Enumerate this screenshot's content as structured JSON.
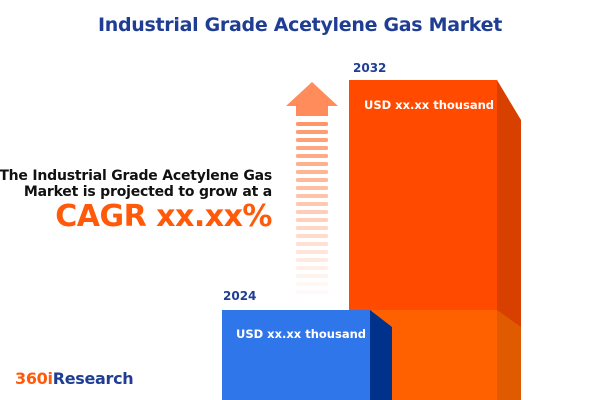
{
  "title": "Industrial Grade Acetylene Gas Market",
  "lead_text": "The Industrial Grade Acetylene Gas Market is projected to grow at a",
  "cagr_text": "CAGR xx.xx%",
  "logo": {
    "part1": "360i",
    "part2": "Research"
  },
  "colors": {
    "title": "#1F3E93",
    "accent": "#FF5A0A",
    "bar_2024": "#2F76EA",
    "bar_2032": "#FF4A00"
  },
  "chart_data": {
    "type": "bar",
    "categories": [
      "2024",
      "2032"
    ],
    "value_labels": [
      "USD xx.xx thousand",
      "USD xx.xx thousand"
    ],
    "title": "Industrial Grade Acetylene Gas Market",
    "annotation": "CAGR xx.xx%"
  }
}
